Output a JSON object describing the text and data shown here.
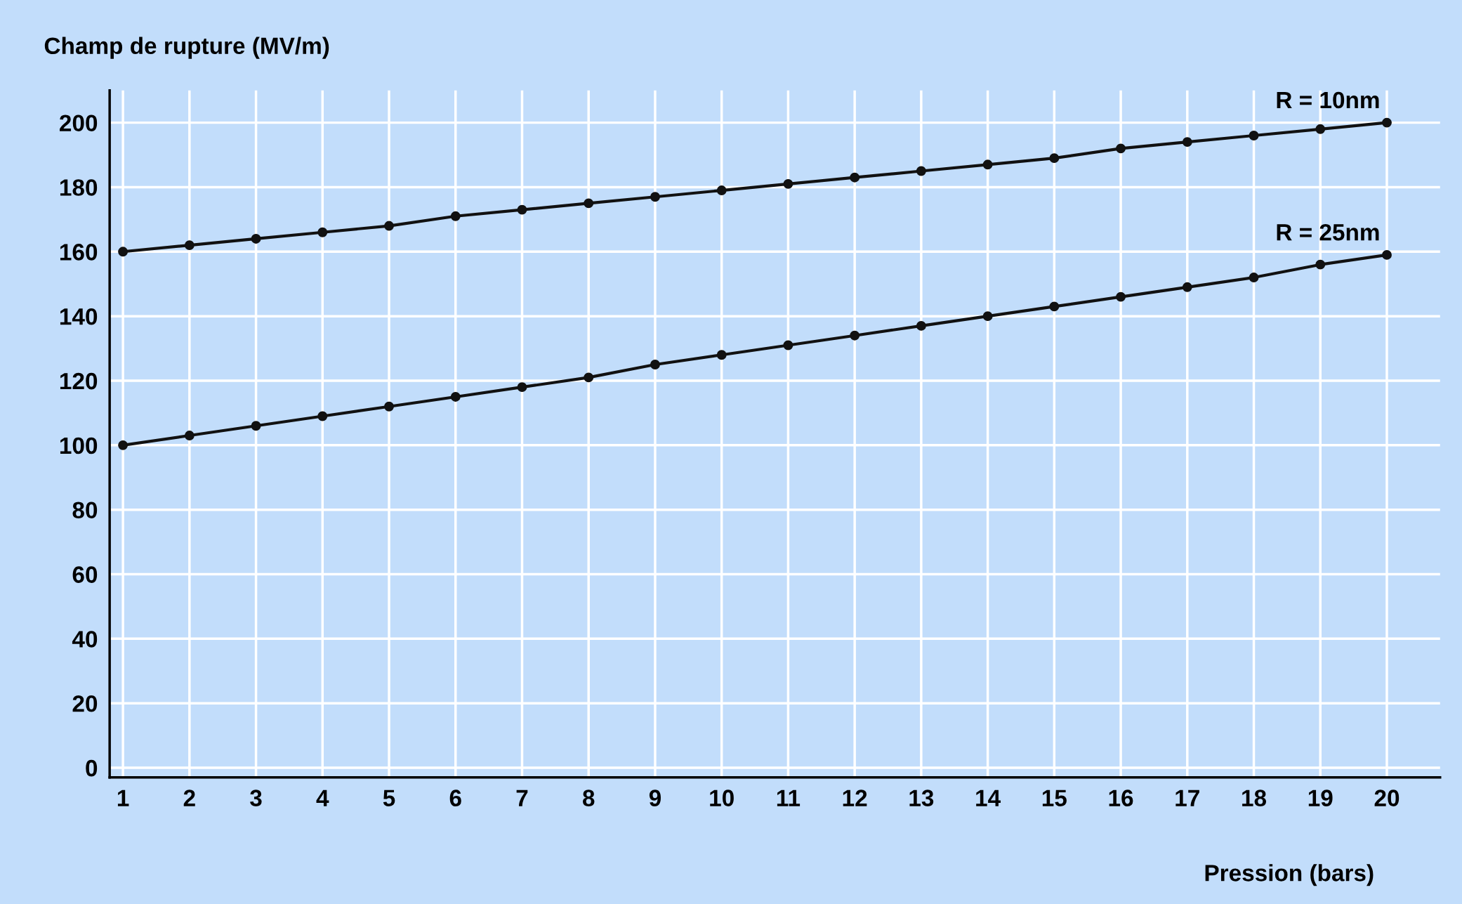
{
  "chart_data": {
    "type": "line",
    "xlabel": "Pression (bars)",
    "ylabel": "Champ de rupture (MV/m)",
    "x": [
      1,
      2,
      3,
      4,
      5,
      6,
      7,
      8,
      9,
      10,
      11,
      12,
      13,
      14,
      15,
      16,
      17,
      18,
      19,
      20
    ],
    "series": [
      {
        "name": "R = 10nm",
        "color": "#111111",
        "values": [
          160,
          162,
          164,
          166,
          168,
          171,
          173,
          175,
          177,
          179,
          181,
          183,
          185,
          187,
          189,
          192,
          194,
          196,
          198,
          200
        ]
      },
      {
        "name": "R = 25nm",
        "color": "#111111",
        "values": [
          100,
          103,
          106,
          109,
          112,
          115,
          118,
          121,
          125,
          128,
          131,
          134,
          137,
          140,
          143,
          146,
          149,
          152,
          156,
          159
        ]
      }
    ],
    "xlim": [
      0.8,
      20.8
    ],
    "xticks": [
      1,
      2,
      3,
      4,
      5,
      6,
      7,
      8,
      9,
      10,
      11,
      12,
      13,
      14,
      15,
      16,
      17,
      18,
      19,
      20
    ],
    "ylim": [
      -3,
      210
    ],
    "yticks": [
      0,
      20,
      40,
      60,
      80,
      100,
      120,
      140,
      160,
      180,
      200
    ],
    "grid": true,
    "marker": "circle",
    "line_style": "solid",
    "legend": false
  }
}
